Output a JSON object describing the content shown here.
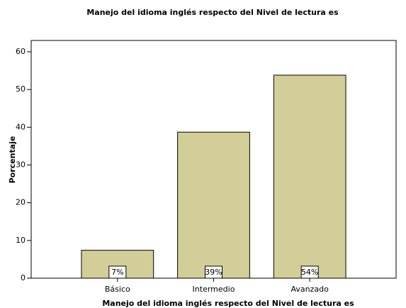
{
  "chart_data": {
    "type": "bar",
    "title": "Manejo del idioma inglés respecto del Nivel de lectura es",
    "x_label": "Manejo del idioma inglés respecto del Nivel de lectura es",
    "y_label": "Porcentaje",
    "categories": [
      "Básico",
      "Intermedio",
      "Avanzado"
    ],
    "values": [
      7.4,
      38.7,
      53.8
    ],
    "value_labels": [
      "7%",
      "39%",
      "54%"
    ],
    "color": "#d3ce97",
    "ylim": [
      0,
      63
    ],
    "yticks": [
      0,
      10,
      20,
      30,
      40,
      50,
      60
    ],
    "grid": false
  }
}
